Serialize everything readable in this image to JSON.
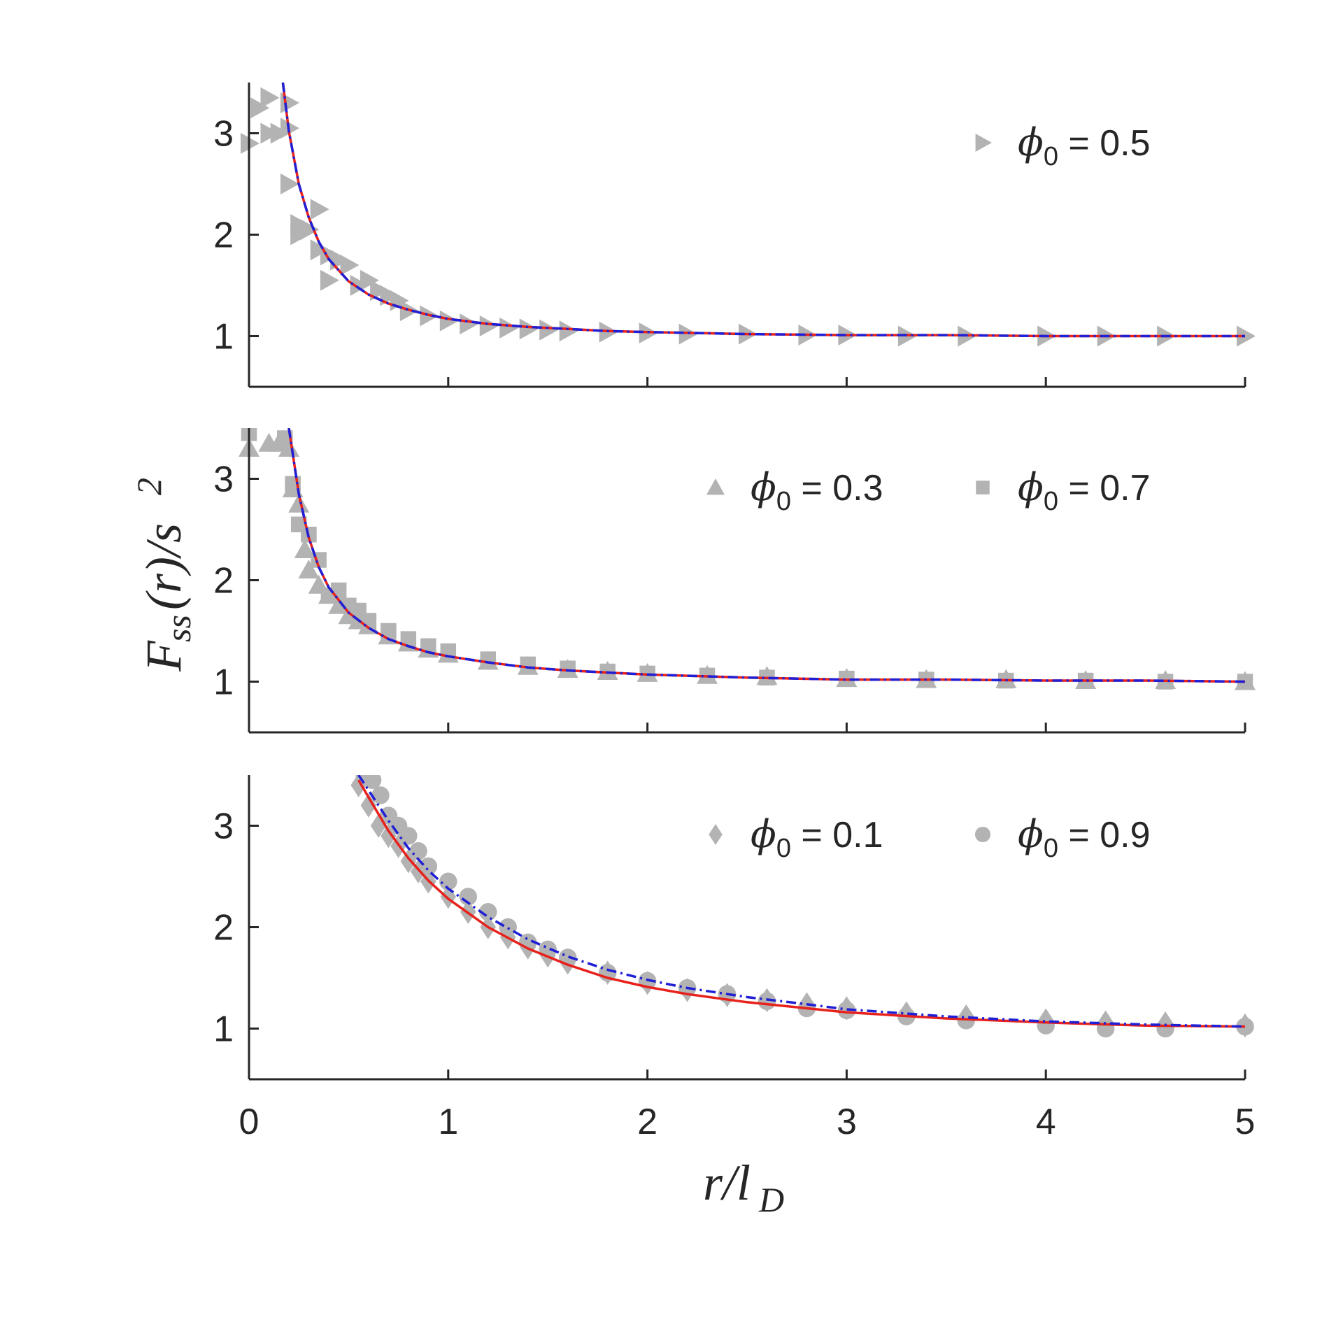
{
  "chart_data": {
    "type": "scatter",
    "layout": "three vertically stacked panels sharing the x axis",
    "xlabel": {
      "main": "r/l",
      "sub": "D"
    },
    "ylabel": {
      "main": "F",
      "sub": "ss",
      "rest": "(r)/s",
      "sup": "2"
    },
    "xlim": [
      0,
      5
    ],
    "ylim": [
      0.5,
      3.5
    ],
    "xticks": [
      0,
      1,
      2,
      3,
      4,
      5
    ],
    "yticks": [
      1,
      2,
      3
    ],
    "grid": false,
    "marker_color": "#b3b3b3",
    "fit_line_colors": {
      "solid": "#e8211c",
      "dashdot": "#1f1fd6"
    },
    "panels": [
      {
        "id": "top",
        "legend_position": "top-right",
        "series": [
          {
            "name": "0.5",
            "marker": "triangle-right",
            "x": [
              0.0,
              0.05,
              0.1,
              0.1,
              0.15,
              0.2,
              0.2,
              0.2,
              0.25,
              0.25,
              0.3,
              0.35,
              0.35,
              0.4,
              0.4,
              0.45,
              0.5,
              0.55,
              0.6,
              0.65,
              0.7,
              0.75,
              0.8,
              0.9,
              1.0,
              1.1,
              1.2,
              1.3,
              1.4,
              1.5,
              1.6,
              1.8,
              2.0,
              2.2,
              2.5,
              2.8,
              3.0,
              3.3,
              3.6,
              4.0,
              4.3,
              4.6,
              5.0
            ],
            "y": [
              2.9,
              3.25,
              3.35,
              3.0,
              3.0,
              3.3,
              3.05,
              2.5,
              2.1,
              2.0,
              2.05,
              1.85,
              2.25,
              1.55,
              1.8,
              1.75,
              1.7,
              1.5,
              1.55,
              1.45,
              1.4,
              1.35,
              1.25,
              1.2,
              1.15,
              1.12,
              1.1,
              1.08,
              1.07,
              1.06,
              1.05,
              1.04,
              1.03,
              1.02,
              1.02,
              1.01,
              1.01,
              1.0,
              1.0,
              1.0,
              1.0,
              1.0,
              1.0
            ]
          }
        ],
        "fits": [
          {
            "style": "solid",
            "x": [
              0.17,
              0.2,
              0.25,
              0.3,
              0.35,
              0.4,
              0.5,
              0.6,
              0.7,
              0.8,
              0.9,
              1.0,
              1.2,
              1.4,
              1.6,
              1.8,
              2.0,
              2.5,
              3.0,
              3.5,
              4.0,
              4.5,
              5.0
            ],
            "y": [
              3.5,
              3.02,
              2.5,
              2.17,
              1.93,
              1.76,
              1.54,
              1.41,
              1.32,
              1.26,
              1.21,
              1.17,
              1.12,
              1.09,
              1.07,
              1.05,
              1.04,
              1.02,
              1.01,
              1.01,
              1.0,
              1.0,
              1.0
            ]
          },
          {
            "style": "dashdot",
            "x": [
              0.17,
              0.2,
              0.25,
              0.3,
              0.35,
              0.4,
              0.5,
              0.6,
              0.7,
              0.8,
              0.9,
              1.0,
              1.2,
              1.4,
              1.6,
              1.8,
              2.0,
              2.5,
              3.0,
              3.5,
              4.0,
              4.5,
              5.0
            ],
            "y": [
              3.5,
              3.02,
              2.5,
              2.17,
              1.93,
              1.76,
              1.54,
              1.41,
              1.32,
              1.26,
              1.21,
              1.17,
              1.12,
              1.09,
              1.07,
              1.05,
              1.04,
              1.02,
              1.01,
              1.01,
              1.0,
              1.0,
              1.0
            ]
          }
        ]
      },
      {
        "id": "middle",
        "legend_position": "top-right",
        "series": [
          {
            "name": "0.3",
            "marker": "triangle-up",
            "x": [
              0.0,
              0.1,
              0.15,
              0.2,
              0.22,
              0.25,
              0.28,
              0.3,
              0.35,
              0.4,
              0.45,
              0.5,
              0.55,
              0.6,
              0.7,
              0.8,
              0.9,
              1.0,
              1.2,
              1.4,
              1.6,
              1.8,
              2.0,
              2.3,
              2.6,
              3.0,
              3.4,
              3.8,
              4.2,
              4.6,
              5.0
            ],
            "y": [
              3.3,
              3.35,
              3.35,
              3.3,
              2.9,
              2.75,
              2.3,
              2.1,
              1.95,
              1.85,
              1.75,
              1.65,
              1.6,
              1.55,
              1.45,
              1.38,
              1.32,
              1.27,
              1.2,
              1.15,
              1.12,
              1.1,
              1.08,
              1.06,
              1.05,
              1.03,
              1.02,
              1.02,
              1.01,
              1.01,
              1.0
            ]
          },
          {
            "name": "0.7",
            "marker": "square",
            "x": [
              0.0,
              0.18,
              0.22,
              0.25,
              0.3,
              0.35,
              0.4,
              0.45,
              0.5,
              0.55,
              0.6,
              0.7,
              0.8,
              0.9,
              1.0,
              1.2,
              1.4,
              1.6,
              1.8,
              2.0,
              2.3,
              2.6,
              3.0,
              3.4,
              3.8,
              4.2,
              4.6,
              5.0
            ],
            "y": [
              3.45,
              3.4,
              2.95,
              2.55,
              2.45,
              2.2,
              1.85,
              1.9,
              1.75,
              1.7,
              1.6,
              1.5,
              1.42,
              1.35,
              1.3,
              1.22,
              1.17,
              1.13,
              1.1,
              1.08,
              1.06,
              1.04,
              1.03,
              1.02,
              1.01,
              1.01,
              1.0,
              1.0
            ]
          }
        ],
        "fits": [
          {
            "style": "solid",
            "x": [
              0.2,
              0.25,
              0.3,
              0.35,
              0.4,
              0.5,
              0.6,
              0.7,
              0.8,
              0.9,
              1.0,
              1.2,
              1.4,
              1.6,
              1.8,
              2.0,
              2.5,
              3.0,
              3.5,
              4.0,
              4.5,
              5.0
            ],
            "y": [
              3.5,
              2.85,
              2.42,
              2.13,
              1.93,
              1.68,
              1.53,
              1.42,
              1.35,
              1.29,
              1.25,
              1.19,
              1.14,
              1.11,
              1.09,
              1.07,
              1.04,
              1.02,
              1.02,
              1.01,
              1.01,
              1.0
            ]
          },
          {
            "style": "dashdot",
            "x": [
              0.2,
              0.25,
              0.3,
              0.35,
              0.4,
              0.5,
              0.6,
              0.7,
              0.8,
              0.9,
              1.0,
              1.2,
              1.4,
              1.6,
              1.8,
              2.0,
              2.5,
              3.0,
              3.5,
              4.0,
              4.5,
              5.0
            ],
            "y": [
              3.5,
              2.85,
              2.42,
              2.13,
              1.93,
              1.68,
              1.53,
              1.42,
              1.35,
              1.29,
              1.25,
              1.19,
              1.14,
              1.11,
              1.09,
              1.07,
              1.04,
              1.02,
              1.02,
              1.01,
              1.01,
              1.0
            ]
          }
        ]
      },
      {
        "id": "bottom",
        "legend_position": "top-right",
        "series": [
          {
            "name": "0.1",
            "marker": "diamond",
            "x": [
              0.55,
              0.6,
              0.65,
              0.7,
              0.75,
              0.8,
              0.85,
              0.9,
              1.0,
              1.1,
              1.2,
              1.3,
              1.4,
              1.5,
              1.6,
              1.8,
              2.0,
              2.2,
              2.4,
              2.6,
              2.8,
              3.0,
              3.3,
              3.6,
              4.0,
              4.3,
              4.6,
              5.0
            ],
            "y": [
              3.4,
              3.2,
              3.0,
              2.9,
              2.8,
              2.65,
              2.55,
              2.45,
              2.3,
              2.15,
              2.0,
              1.9,
              1.8,
              1.72,
              1.65,
              1.55,
              1.45,
              1.38,
              1.33,
              1.28,
              1.24,
              1.2,
              1.15,
              1.12,
              1.08,
              1.06,
              1.05,
              1.03
            ]
          },
          {
            "name": "0.9",
            "marker": "circle",
            "x": [
              0.58,
              0.62,
              0.66,
              0.7,
              0.75,
              0.8,
              0.85,
              0.9,
              1.0,
              1.1,
              1.2,
              1.3,
              1.4,
              1.5,
              1.6,
              1.8,
              2.0,
              2.2,
              2.4,
              2.6,
              2.8,
              3.0,
              3.3,
              3.6,
              4.0,
              4.3,
              4.6,
              5.0
            ],
            "y": [
              3.5,
              3.45,
              3.3,
              3.1,
              3.0,
              2.9,
              2.75,
              2.6,
              2.45,
              2.3,
              2.15,
              2.0,
              1.85,
              1.78,
              1.7,
              1.55,
              1.47,
              1.4,
              1.34,
              1.27,
              1.2,
              1.18,
              1.12,
              1.08,
              1.03,
              1.0,
              1.0,
              1.02
            ]
          }
        ],
        "fits": [
          {
            "style": "solid",
            "x": [
              0.55,
              0.6,
              0.7,
              0.8,
              0.9,
              1.0,
              1.2,
              1.4,
              1.6,
              1.8,
              2.0,
              2.2,
              2.5,
              2.8,
              3.0,
              3.5,
              4.0,
              4.5,
              5.0
            ],
            "y": [
              3.45,
              3.28,
              2.95,
              2.68,
              2.46,
              2.28,
              2.0,
              1.79,
              1.63,
              1.5,
              1.41,
              1.34,
              1.26,
              1.2,
              1.16,
              1.1,
              1.06,
              1.03,
              1.02
            ]
          },
          {
            "style": "dashdot",
            "x": [
              0.55,
              0.6,
              0.7,
              0.8,
              0.9,
              1.0,
              1.2,
              1.4,
              1.6,
              1.8,
              2.0,
              2.2,
              2.5,
              2.8,
              3.0,
              3.5,
              4.0,
              4.5,
              5.0
            ],
            "y": [
              3.5,
              3.35,
              3.05,
              2.78,
              2.56,
              2.38,
              2.1,
              1.88,
              1.71,
              1.58,
              1.48,
              1.4,
              1.31,
              1.24,
              1.19,
              1.12,
              1.07,
              1.04,
              1.02
            ]
          }
        ]
      }
    ]
  }
}
